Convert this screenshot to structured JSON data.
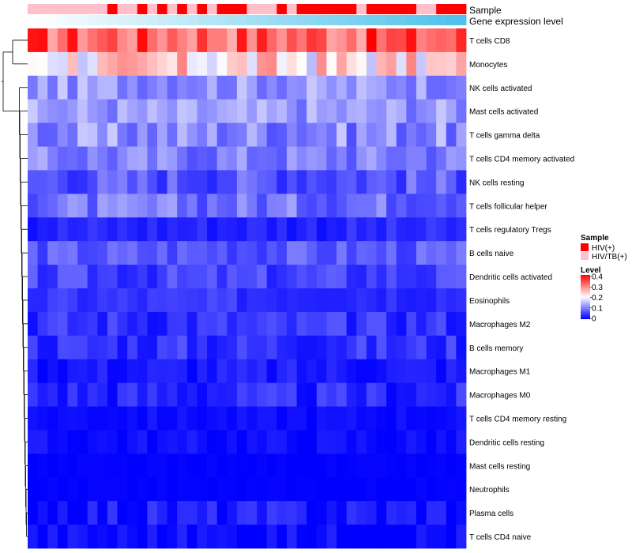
{
  "chart_data": {
    "type": "heatmap",
    "annotation_rows": [
      {
        "label": "Sample"
      },
      {
        "label": "Gene expression level"
      }
    ],
    "row_labels": [
      "T cells CD8",
      "Monocytes",
      "NK cells activated",
      "Mast cells activated",
      "T cells gamma delta",
      "T cells CD4 memory activated",
      "NK cells resting",
      "T cells follicular helper",
      "T cells regulatory  Tregs",
      "B cells naive",
      "Dendritic cells activated",
      "Eosinophils",
      "Macrophages M2",
      "B cells memory",
      "Macrophages M1",
      "Macrophages M0",
      "T cells CD4 memory resting",
      "Dendritic cells resting",
      "Mast cells resting",
      "Neutrophils",
      "Plasma cells",
      "T cells CD4 naive"
    ],
    "n_samples": 44,
    "sample_groups": [
      "HIV/TB(+)",
      "HIV/TB(+)",
      "HIV/TB(+)",
      "HIV/TB(+)",
      "HIV/TB(+)",
      "HIV/TB(+)",
      "HIV/TB(+)",
      "HIV/TB(+)",
      "HIV(+)",
      "HIV/TB(+)",
      "HIV/TB(+)",
      "HIV(+)",
      "HIV/TB(+)",
      "HIV(+)",
      "HIV/TB(+)",
      "HIV(+)",
      "HIV/TB(+)",
      "HIV(+)",
      "HIV/TB(+)",
      "HIV(+)",
      "HIV(+)",
      "HIV(+)",
      "HIV/TB(+)",
      "HIV/TB(+)",
      "HIV/TB(+)",
      "HIV(+)",
      "HIV/TB(+)",
      "HIV(+)",
      "HIV(+)",
      "HIV(+)",
      "HIV(+)",
      "HIV(+)",
      "HIV(+)",
      "HIV/TB(+)",
      "HIV(+)",
      "HIV(+)",
      "HIV(+)",
      "HIV(+)",
      "HIV(+)",
      "HIV/TB(+)",
      "HIV/TB(+)",
      "HIV(+)",
      "HIV(+)",
      "HIV(+)"
    ],
    "gene_expression_gradient": {
      "from": "#ffffff",
      "to": "#4fc1ea"
    },
    "color_scale": {
      "min": 0,
      "max": 0.4,
      "colors": [
        "#0000ff",
        "#ffffff",
        "#ff0000"
      ]
    },
    "legend": {
      "sample_title": "Sample",
      "sample_entries": [
        {
          "label": "HIV(+)",
          "color": "#ff0000"
        },
        {
          "label": "HIV/TB(+)",
          "color": "#ffc0cb"
        }
      ],
      "level_title": "Level",
      "level_ticks": [
        "0.4",
        "0.3",
        "0.2",
        "0.1",
        "0"
      ],
      "level_tick_values": [
        0.4,
        0.3,
        0.2,
        0.1,
        0
      ],
      "placement": "right"
    },
    "row_base_levels": [
      0.33,
      0.22,
      0.12,
      0.12,
      0.11,
      0.1,
      0.07,
      0.09,
      0.03,
      0.07,
      0.05,
      0.04,
      0.04,
      0.04,
      0.02,
      0.03,
      0.01,
      0.01,
      0.0,
      0.0,
      0.02,
      0.01
    ],
    "row_variation": [
      0.07,
      0.08,
      0.04,
      0.04,
      0.05,
      0.04,
      0.04,
      0.04,
      0.02,
      0.03,
      0.03,
      0.02,
      0.03,
      0.03,
      0.02,
      0.03,
      0.01,
      0.015,
      0.005,
      0.005,
      0.03,
      0.02
    ],
    "dendrogram": [
      {
        "merge": [
          0,
          1
        ]
      },
      {
        "merge": [
          2,
          3
        ]
      },
      {
        "merge": [
          4,
          5
        ]
      },
      {
        "merge": [
          6,
          7
        ]
      }
    ]
  }
}
